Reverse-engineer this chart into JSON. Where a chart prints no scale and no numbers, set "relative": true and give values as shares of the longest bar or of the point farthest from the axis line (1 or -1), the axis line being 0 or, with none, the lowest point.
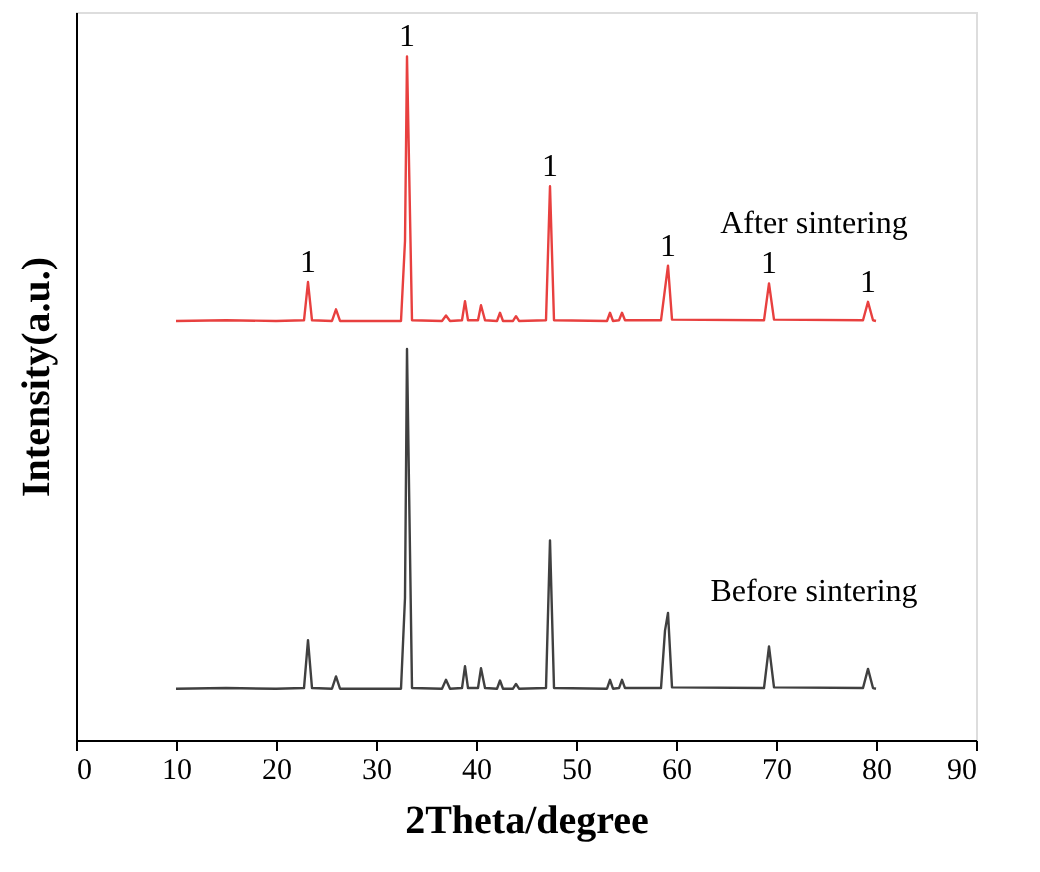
{
  "chart_data": {
    "type": "line",
    "relative": true,
    "xlabel": "2Theta/degree",
    "ylabel": "Intensity(a.u.)",
    "x": [
      10,
      15,
      20,
      22.8,
      23.2,
      23.6,
      25.6,
      26,
      26.4,
      32.5,
      32.9,
      33.1,
      33.6,
      36.6,
      37,
      37.4,
      38.6,
      38.9,
      39.2,
      40.2,
      40.5,
      40.9,
      42.1,
      42.4,
      42.7,
      43.7,
      44,
      44.3,
      47.0,
      47.4,
      47.8,
      53.1,
      53.4,
      53.7,
      54.3,
      54.6,
      54.9,
      58.5,
      58.9,
      59.2,
      59.6,
      68.8,
      69.3,
      69.8,
      78.7,
      79.2,
      79.7,
      80
    ],
    "series": [
      {
        "name": "After sintering",
        "color": "#e8403f",
        "values": [
          0.613,
          0.614,
          0.613,
          0.614,
          0.67,
          0.614,
          0.613,
          0.63,
          0.613,
          0.613,
          0.73,
          1.0,
          0.614,
          0.613,
          0.621,
          0.613,
          0.614,
          0.642,
          0.614,
          0.614,
          0.636,
          0.614,
          0.613,
          0.625,
          0.613,
          0.613,
          0.62,
          0.613,
          0.614,
          0.81,
          0.614,
          0.613,
          0.625,
          0.613,
          0.614,
          0.625,
          0.614,
          0.614,
          0.66,
          0.694,
          0.615,
          0.614,
          0.668,
          0.615,
          0.614,
          0.641,
          0.614,
          0.613
        ]
      },
      {
        "name": "Before sintering",
        "color": "#404040",
        "values": [
          0.075,
          0.076,
          0.075,
          0.076,
          0.146,
          0.076,
          0.075,
          0.093,
          0.075,
          0.075,
          0.208,
          0.572,
          0.076,
          0.075,
          0.088,
          0.075,
          0.076,
          0.108,
          0.076,
          0.076,
          0.105,
          0.076,
          0.075,
          0.087,
          0.075,
          0.075,
          0.082,
          0.075,
          0.076,
          0.292,
          0.076,
          0.075,
          0.088,
          0.075,
          0.076,
          0.088,
          0.076,
          0.076,
          0.16,
          0.186,
          0.077,
          0.076,
          0.137,
          0.077,
          0.076,
          0.104,
          0.076,
          0.075
        ]
      }
    ],
    "xlim": [
      0,
      90
    ],
    "xticks": [
      0,
      10,
      20,
      30,
      40,
      50,
      60,
      70,
      80,
      90
    ],
    "grid": false,
    "annotations": [
      {
        "text": "1",
        "x": 23.2,
        "y": 0.67
      },
      {
        "text": "1",
        "x": 33.1,
        "y": 1.0
      },
      {
        "text": "1",
        "x": 47.4,
        "y": 0.81
      },
      {
        "text": "1",
        "x": 59.2,
        "y": 0.694
      },
      {
        "text": "1",
        "x": 69.3,
        "y": 0.668
      },
      {
        "text": "1",
        "x": 79.2,
        "y": 0.641
      }
    ]
  }
}
